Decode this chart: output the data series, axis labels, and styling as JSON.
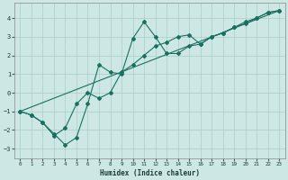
{
  "xlabel": "Humidex (Indice chaleur)",
  "bg_color": "#cde8e4",
  "grid_color": "#aaccc8",
  "line_color": "#1a7060",
  "xlim": [
    -0.5,
    23.5
  ],
  "ylim": [
    -3.5,
    4.8
  ],
  "xticks": [
    0,
    1,
    2,
    3,
    4,
    5,
    6,
    7,
    8,
    9,
    10,
    11,
    12,
    13,
    14,
    15,
    16,
    17,
    18,
    19,
    20,
    21,
    22,
    23
  ],
  "yticks": [
    -3,
    -2,
    -1,
    0,
    1,
    2,
    3,
    4
  ],
  "line1_x": [
    0,
    1,
    2,
    3,
    4,
    5,
    6,
    7,
    8,
    9,
    10,
    11,
    12,
    13,
    14,
    15,
    16,
    17,
    18,
    19,
    20,
    21,
    22,
    23
  ],
  "line1_y": [
    -1.0,
    -1.2,
    -1.6,
    -2.3,
    -1.9,
    -0.6,
    0.0,
    -0.3,
    0.0,
    1.1,
    1.5,
    2.0,
    2.5,
    2.7,
    3.0,
    3.1,
    2.6,
    3.0,
    3.2,
    3.5,
    3.8,
    4.0,
    4.3,
    4.4
  ],
  "line2_x": [
    0,
    1,
    2,
    3,
    4,
    5,
    6,
    7,
    8,
    9,
    10,
    11,
    12,
    13,
    14,
    15,
    16,
    17,
    18,
    19,
    20,
    21,
    22,
    23
  ],
  "line2_y": [
    -1.0,
    -1.2,
    -1.6,
    -2.2,
    -2.8,
    -2.4,
    -0.6,
    1.5,
    1.1,
    1.0,
    2.9,
    3.8,
    3.0,
    2.1,
    2.1,
    2.5,
    2.6,
    3.0,
    3.2,
    3.5,
    3.7,
    4.0,
    4.3,
    4.4
  ],
  "line3_x": [
    0,
    23
  ],
  "line3_y": [
    -1.0,
    4.4
  ]
}
